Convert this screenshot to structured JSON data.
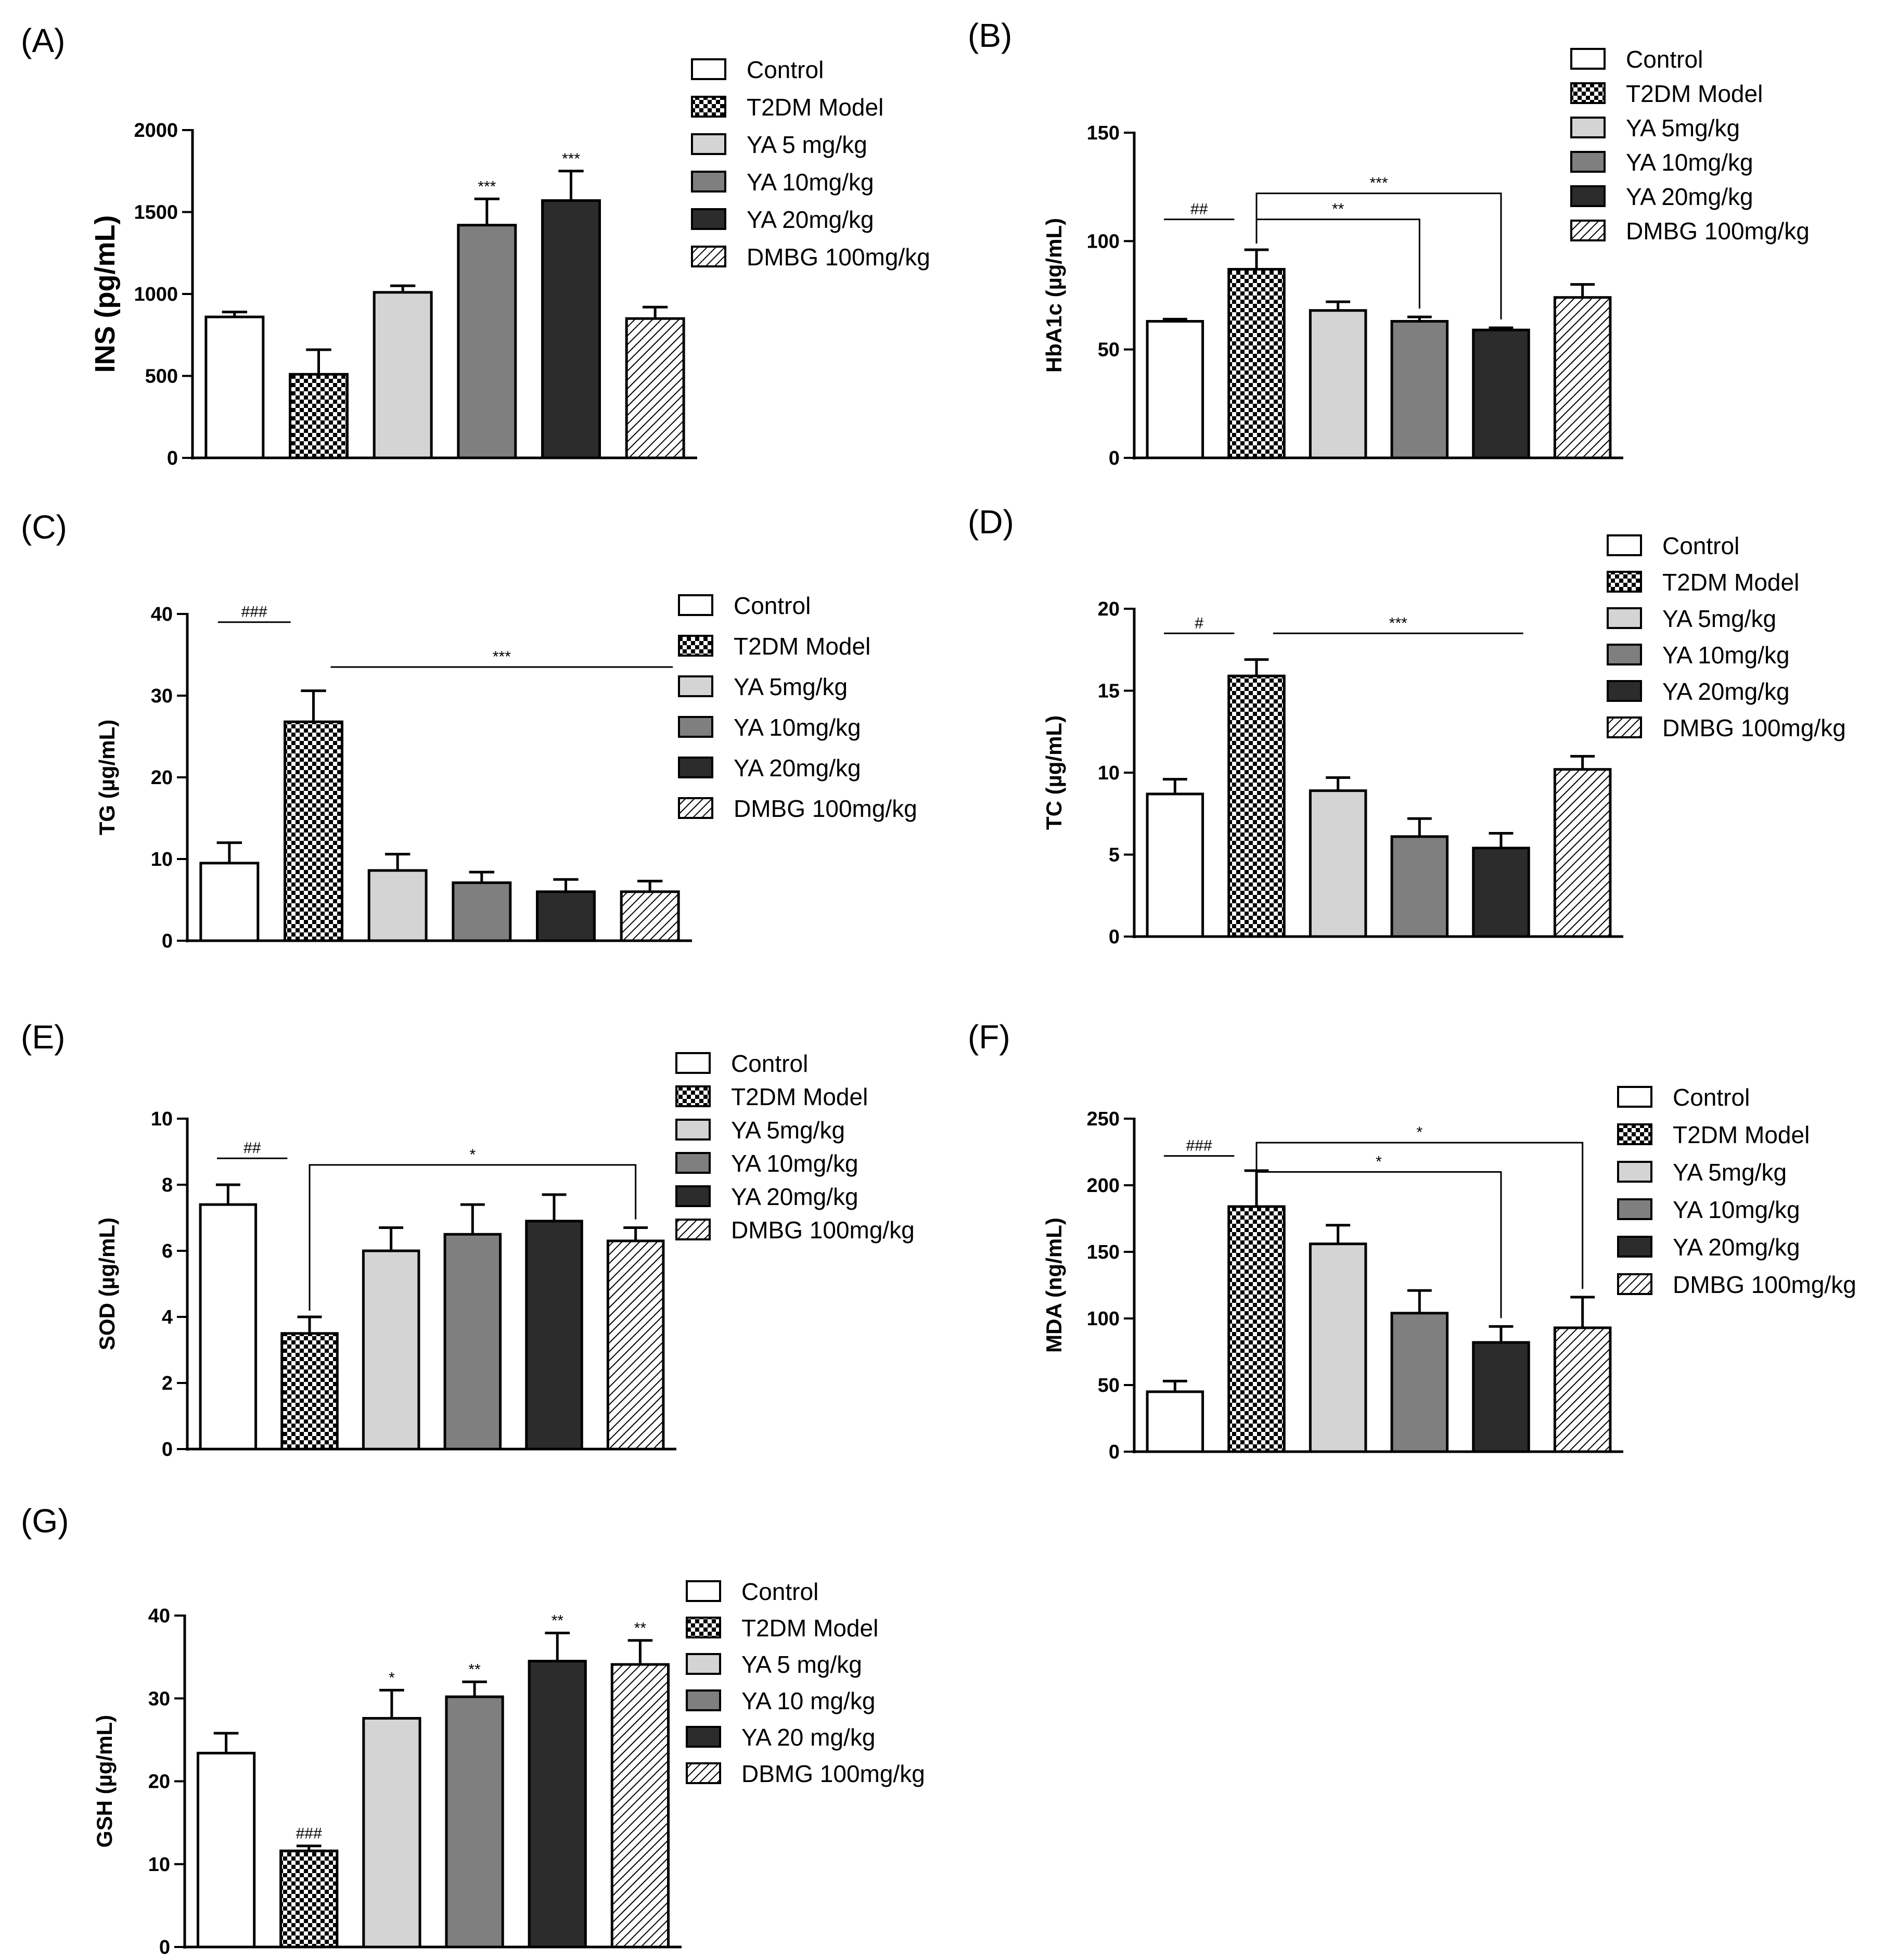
{
  "chart_data": [
    {
      "panel": "(A)",
      "type": "bar",
      "ylabel": "INS (pg/mL)",
      "categories": [
        "Control",
        "T2DM Model",
        "YA 5 mg/kg",
        "YA 10mg/kg",
        "YA 20mg/kg",
        "DMBG 100mg/kg"
      ],
      "values": [
        860,
        510,
        1010,
        1420,
        1570,
        850
      ],
      "errors": [
        30,
        150,
        40,
        160,
        180,
        70
      ],
      "ylim": [
        0,
        2000
      ],
      "yticks": [
        "0",
        "500",
        "1000",
        "1500",
        "2000"
      ],
      "bar_labels": [
        "",
        "",
        "",
        "***",
        "***",
        ""
      ],
      "brackets": []
    },
    {
      "panel": "(B)",
      "type": "bar",
      "ylabel": "HbA1c (µg/mL)",
      "categories": [
        "Control",
        "T2DM Model",
        "YA 5mg/kg",
        "YA 10mg/kg",
        "YA 20mg/kg",
        "DMBG 100mg/kg"
      ],
      "values": [
        63,
        87,
        68,
        63,
        59,
        74
      ],
      "errors": [
        1,
        9,
        4,
        2,
        1,
        6
      ],
      "ylim": [
        0,
        150
      ],
      "yticks": [
        "0",
        "50",
        "100",
        "150"
      ],
      "bar_labels": [
        "",
        "",
        "",
        "",
        "",
        ""
      ],
      "brackets": [
        {
          "from": 0,
          "to": 1,
          "label": "##",
          "type": "line",
          "level": 110
        },
        {
          "from": 1,
          "to": 4,
          "label": "***",
          "type": "down",
          "level": 122
        },
        {
          "from": 1,
          "to": 3,
          "label": "**",
          "type": "down",
          "level": 110
        }
      ]
    },
    {
      "panel": "(C)",
      "type": "bar",
      "ylabel": "TG (µg/mL)",
      "categories": [
        "Control",
        "T2DM Model",
        "YA 5mg/kg",
        "YA 10mg/kg",
        "YA 20mg/kg",
        "DMBG 100mg/kg"
      ],
      "values": [
        9.5,
        26.8,
        8.6,
        7.1,
        6.0,
        6.0
      ],
      "errors": [
        2.5,
        3.8,
        2.0,
        1.3,
        1.5,
        1.3
      ],
      "ylim": [
        0,
        40
      ],
      "yticks": [
        "0",
        "10",
        "20",
        "30",
        "40"
      ],
      "bar_labels": [
        "",
        "",
        "",
        "",
        "",
        ""
      ],
      "brackets": [
        {
          "from": 0,
          "to": 1,
          "label": "###",
          "type": "line",
          "level": 39
        },
        {
          "from": 1,
          "to": 5,
          "label": "***",
          "type": "line",
          "level": 33.5
        }
      ]
    },
    {
      "panel": "(D)",
      "type": "bar",
      "ylabel": "TC (µg/mL)",
      "categories": [
        "Control",
        "T2DM Model",
        "YA 5mg/kg",
        "YA 10mg/kg",
        "YA 20mg/kg",
        "DMBG 100mg/kg"
      ],
      "values": [
        8.7,
        15.9,
        8.9,
        6.1,
        5.4,
        10.2
      ],
      "errors": [
        0.9,
        1.0,
        0.8,
        1.1,
        0.9,
        0.8
      ],
      "ylim": [
        0,
        20
      ],
      "yticks": [
        "0",
        "5",
        "10",
        "15",
        "20"
      ],
      "bar_labels": [
        "",
        "",
        "",
        "",
        "",
        ""
      ],
      "brackets": [
        {
          "from": 0,
          "to": 1,
          "label": "#",
          "type": "line",
          "level": 18.5
        },
        {
          "from": 1,
          "to": 4,
          "label": "***",
          "type": "line",
          "level": 18.5
        }
      ]
    },
    {
      "panel": "(E)",
      "type": "bar",
      "ylabel": "SOD (µg/mL)",
      "categories": [
        "Control",
        "T2DM Model",
        "YA 5mg/kg",
        "YA 10mg/kg",
        "YA 20mg/kg",
        "DMBG 100mg/kg"
      ],
      "values": [
        7.4,
        3.5,
        6.0,
        6.5,
        6.9,
        6.3
      ],
      "errors": [
        0.6,
        0.5,
        0.7,
        0.9,
        0.8,
        0.4
      ],
      "ylim": [
        0,
        10
      ],
      "yticks": [
        "0",
        "2",
        "4",
        "6",
        "8",
        "10"
      ],
      "bar_labels": [
        "",
        "",
        "",
        "",
        "",
        ""
      ],
      "brackets": [
        {
          "from": 0,
          "to": 1,
          "label": "##",
          "type": "line",
          "level": 8.8
        },
        {
          "from": 1,
          "to": 5,
          "label": "*",
          "type": "down",
          "level": 8.6
        }
      ]
    },
    {
      "panel": "(F)",
      "type": "bar",
      "ylabel": "MDA (ng/mL)",
      "categories": [
        "Control",
        "T2DM Model",
        "YA 5mg/kg",
        "YA 10mg/kg",
        "YA 20mg/kg",
        "DMBG 100mg/kg"
      ],
      "values": [
        45,
        184,
        156,
        104,
        82,
        93
      ],
      "errors": [
        8,
        27,
        14,
        17,
        12,
        23
      ],
      "ylim": [
        0,
        250
      ],
      "yticks": [
        "0",
        "50",
        "100",
        "150",
        "200",
        "250"
      ],
      "bar_labels": [
        "",
        "",
        "",
        "",
        "",
        ""
      ],
      "brackets": [
        {
          "from": 0,
          "to": 1,
          "label": "###",
          "type": "line",
          "level": 222
        },
        {
          "from": 1,
          "to": 5,
          "label": "*",
          "type": "down",
          "level": 232
        },
        {
          "from": 1,
          "to": 4,
          "label": "*",
          "type": "down",
          "level": 210
        }
      ]
    },
    {
      "panel": "(G)",
      "type": "bar",
      "ylabel": "GSH (µg/mL)",
      "categories": [
        "Control",
        "T2DM Model",
        "YA 5 mg/kg",
        "YA 10 mg/kg",
        "YA 20 mg/kg",
        "DBMG 100mg/kg"
      ],
      "values": [
        23.4,
        11.6,
        27.6,
        30.2,
        34.5,
        34.1
      ],
      "errors": [
        2.4,
        0.6,
        3.4,
        1.8,
        3.4,
        2.9
      ],
      "ylim": [
        0,
        40
      ],
      "yticks": [
        "0",
        "10",
        "20",
        "30",
        "40"
      ],
      "bar_labels": [
        "",
        "###",
        "*",
        "**",
        "**",
        "**"
      ],
      "brackets": []
    }
  ]
}
